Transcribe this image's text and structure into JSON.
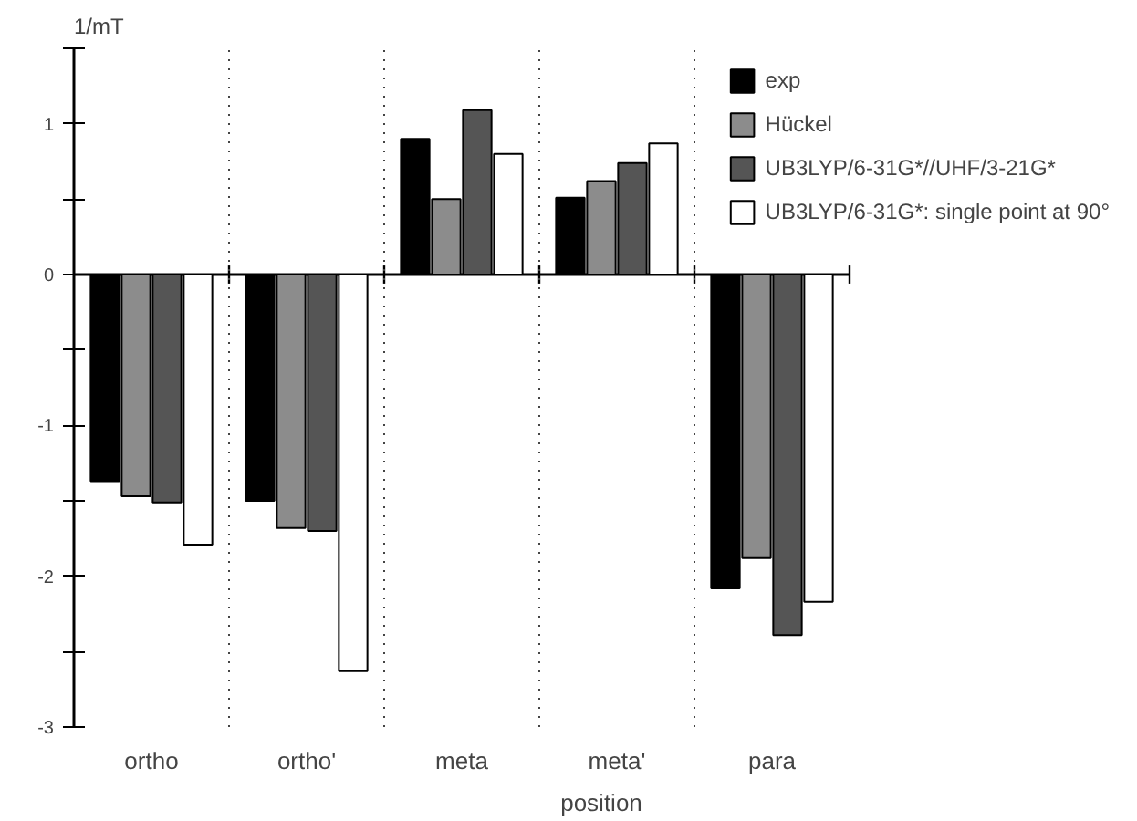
{
  "chart_data": {
    "type": "bar",
    "ylabel": "1/mT",
    "xlabel": "position",
    "categories": [
      "ortho",
      "ortho'",
      "meta",
      "meta'",
      "para"
    ],
    "series": [
      {
        "name": "exp",
        "color": "#000000",
        "values": [
          -1.37,
          -1.5,
          0.9,
          0.51,
          -2.08
        ]
      },
      {
        "name": "Hückel",
        "color": "#8c8c8c",
        "values": [
          -1.47,
          -1.68,
          0.5,
          0.62,
          -1.88
        ]
      },
      {
        "name": "UB3LYP/6-31G*//UHF/3-21G*",
        "color": "#555555",
        "values": [
          -1.51,
          -1.7,
          1.09,
          0.74,
          -2.39
        ]
      },
      {
        "name": "UB3LYP/6-31G*: single point at 90°",
        "color": "#ffffff",
        "values": [
          -1.79,
          -2.63,
          0.8,
          0.87,
          -2.17
        ]
      }
    ],
    "ylim": [
      -3,
      1.5
    ],
    "yticks": [
      -3,
      {
        "value": -2.5,
        "label": null
      },
      -2,
      {
        "value": -1.5,
        "label": null
      },
      -1,
      {
        "value": -0.5,
        "label": null
      },
      0,
      {
        "value": 0.5,
        "label": null
      },
      1,
      {
        "value": 1.5,
        "label": null
      }
    ],
    "grid": "x",
    "legend": "top right"
  }
}
